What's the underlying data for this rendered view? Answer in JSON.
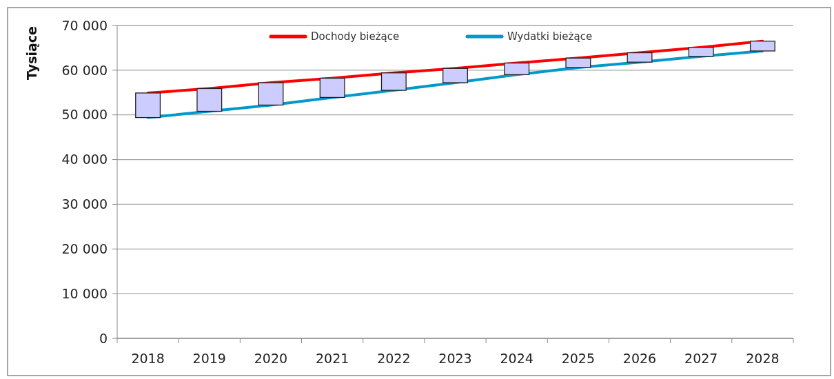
{
  "chart_data": {
    "type": "line",
    "ylabel": "Tysiące",
    "categories": [
      "2018",
      "2019",
      "2020",
      "2021",
      "2022",
      "2023",
      "2024",
      "2025",
      "2026",
      "2027",
      "2028"
    ],
    "ylim": [
      0,
      70000
    ],
    "yticks": [
      {
        "value": 0,
        "label": "0"
      },
      {
        "value": 10000,
        "label": "10 000"
      },
      {
        "value": 20000,
        "label": "20 000"
      },
      {
        "value": 30000,
        "label": "30 000"
      },
      {
        "value": 40000,
        "label": "40 000"
      },
      {
        "value": 50000,
        "label": "50 000"
      },
      {
        "value": 60000,
        "label": "60 000"
      },
      {
        "value": 70000,
        "label": "70 000"
      }
    ],
    "grid": "y",
    "legend": "top",
    "marker": "none",
    "line_style": "solid",
    "series": [
      {
        "type": "bar",
        "color": "#ccccff",
        "base": [
          49400,
          50800,
          52200,
          53900,
          55500,
          57200,
          59000,
          60600,
          61800,
          63100,
          64300
        ],
        "values": [
          5500,
          5100,
          5000,
          4300,
          3900,
          3200,
          2600,
          2100,
          2100,
          2000,
          2200
        ]
      },
      {
        "name": "Dochody bieżące",
        "color": "#ff0000",
        "values": [
          54900,
          55900,
          57200,
          58200,
          59400,
          60400,
          61600,
          62700,
          63900,
          65100,
          66500
        ]
      },
      {
        "name": "Wydatki bieżące",
        "color": "#0099cc",
        "values": [
          49400,
          50800,
          52200,
          53900,
          55500,
          57200,
          59000,
          60600,
          61800,
          63100,
          64300
        ]
      }
    ]
  }
}
